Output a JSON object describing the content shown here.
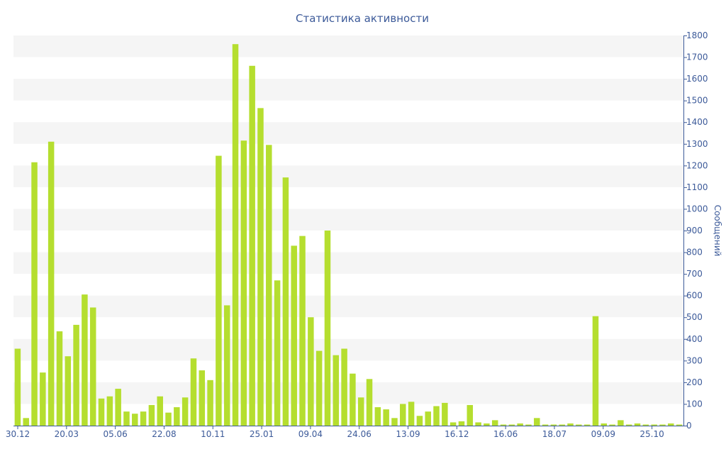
{
  "chart_data": {
    "type": "bar",
    "title": "Статистика активности",
    "xlabel": "",
    "ylabel": "Сообщений",
    "x_tick_labels": [
      "30.12",
      "20.03",
      "05.06",
      "22.08",
      "10.11",
      "25.01",
      "09.04",
      "24.06",
      "13.09",
      "16.12",
      "16.06",
      "18.07",
      "09.09",
      "25.10"
    ],
    "ylim": [
      0,
      1800
    ],
    "y_ticks": [
      0,
      100,
      200,
      300,
      400,
      500,
      600,
      700,
      800,
      900,
      1000,
      1100,
      1200,
      1300,
      1400,
      1500,
      1600,
      1700,
      1800
    ],
    "y_axis_side": "right",
    "grid": "alternating horizontal bands",
    "legend": "none",
    "series": [
      {
        "values": [
          355,
          35,
          1215,
          245,
          1310,
          435,
          320,
          465,
          605,
          545,
          125,
          135,
          170,
          65,
          55,
          65,
          95,
          135,
          60,
          85,
          130,
          310,
          255,
          210,
          1245,
          555,
          1760,
          1315,
          1660,
          1465,
          1295,
          670,
          1145,
          830,
          875,
          500,
          345,
          900,
          325,
          355,
          240,
          130,
          215,
          85,
          75,
          35,
          100,
          110,
          45,
          65,
          90,
          105,
          15,
          20,
          95,
          15,
          10,
          25,
          5,
          5,
          10,
          5,
          35,
          5,
          5,
          5,
          10,
          5,
          5,
          505,
          10,
          5,
          25,
          5,
          10,
          5,
          5,
          5,
          10,
          5
        ]
      }
    ],
    "colors": {
      "bar": "#b5de2f",
      "text": "#3c5a99",
      "band": "#f5f5f5"
    }
  }
}
